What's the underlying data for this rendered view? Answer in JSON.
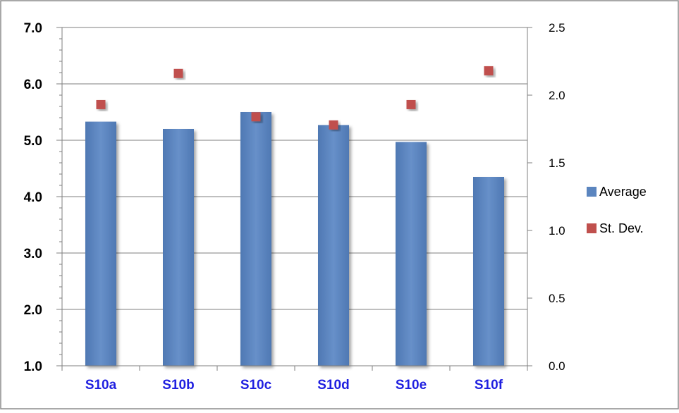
{
  "chart_data": {
    "type": "bar",
    "title": "",
    "categories": [
      "S10a",
      "S10b",
      "S10c",
      "S10d",
      "S10e",
      "S10f"
    ],
    "series": [
      {
        "name": "Average",
        "kind": "bar",
        "axis": "left",
        "color": "#5B85BF",
        "values": [
          5.33,
          5.2,
          5.5,
          5.27,
          4.97,
          4.35
        ]
      },
      {
        "name": "St. Dev.",
        "kind": "marker",
        "axis": "right",
        "color": "#C0504D",
        "values": [
          1.93,
          2.16,
          1.84,
          1.78,
          1.93,
          2.18
        ]
      }
    ],
    "y_left": {
      "ylim": [
        1.0,
        7.0
      ],
      "ticks": [
        "1.0",
        "2.0",
        "3.0",
        "4.0",
        "5.0",
        "6.0",
        "7.0"
      ]
    },
    "y_right": {
      "ylim": [
        0.0,
        2.5
      ],
      "ticks": [
        "0.0",
        "0.5",
        "1.0",
        "1.5",
        "2.0",
        "2.5"
      ]
    },
    "grid": true,
    "legend_position": "right",
    "category_label_color": "#1F1FE0"
  }
}
